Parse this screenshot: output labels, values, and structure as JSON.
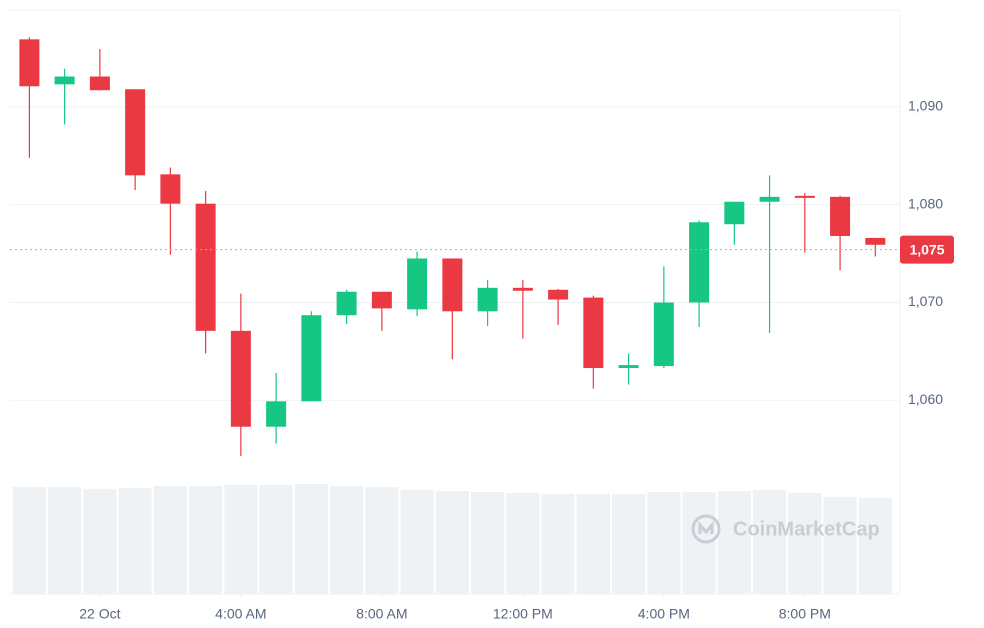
{
  "chart_data": {
    "type": "candlestick",
    "open": [
      1096.9,
      1092.3,
      1093.1,
      1091.8,
      1083.1,
      1080.1,
      1067.1,
      1057.3,
      1059.9,
      1068.7,
      1071.1,
      1069.3,
      1074.5,
      1069.1,
      1071.5,
      1071.3,
      1070.5,
      1063.3,
      1063.5,
      1070.0,
      1078.0,
      1080.3,
      1080.9,
      1080.8,
      1076.6
    ],
    "high": [
      1097.1,
      1093.9,
      1095.9,
      1091.8,
      1083.8,
      1081.4,
      1070.9,
      1062.8,
      1069.1,
      1071.3,
      1071.1,
      1075.2,
      1074.5,
      1072.3,
      1072.3,
      1071.4,
      1070.7,
      1064.8,
      1073.7,
      1078.4,
      1080.3,
      1083.0,
      1081.2,
      1080.9,
      1076.6
    ],
    "low": [
      1084.8,
      1088.2,
      1091.7,
      1081.5,
      1074.9,
      1064.8,
      1054.3,
      1055.6,
      1059.9,
      1067.8,
      1067.1,
      1068.6,
      1064.2,
      1067.6,
      1066.3,
      1067.7,
      1061.2,
      1061.6,
      1063.3,
      1067.5,
      1075.9,
      1066.9,
      1075.1,
      1073.3,
      1074.7
    ],
    "close": [
      1092.1,
      1093.1,
      1091.7,
      1083.0,
      1080.1,
      1067.1,
      1057.3,
      1059.9,
      1068.7,
      1071.1,
      1069.4,
      1074.5,
      1069.1,
      1071.5,
      1071.2,
      1070.3,
      1063.3,
      1063.6,
      1070.0,
      1078.2,
      1080.3,
      1080.8,
      1080.7,
      1076.8,
      1075.9
    ],
    "volumes": [
      107,
      107,
      105,
      106,
      108,
      108,
      109,
      109,
      110,
      108,
      107,
      104,
      103,
      102,
      101,
      100,
      100,
      100,
      102,
      102,
      103,
      104,
      101,
      97,
      96
    ],
    "volume_lim": [
      0,
      120
    ],
    "up_color": "#16c784",
    "down_color": "#ea3943",
    "volume_color": "#eff2f5",
    "ylim": [
      1040.2,
      1099.9
    ],
    "yticks": [
      {
        "value": 1060,
        "label": "1,060"
      },
      {
        "value": 1070,
        "label": "1,070"
      },
      {
        "value": 1080,
        "label": "1,080"
      },
      {
        "value": 1090,
        "label": "1,090"
      }
    ],
    "xlim": [
      -0.55,
      24.7
    ],
    "xticks": [
      {
        "value": 2,
        "label": "22 Oct"
      },
      {
        "value": 6,
        "label": "4:00 AM"
      },
      {
        "value": 10,
        "label": "8:00 AM"
      },
      {
        "value": 14,
        "label": "12:00 PM"
      },
      {
        "value": 18,
        "label": "4:00 PM"
      },
      {
        "value": 22,
        "label": "8:00 PM"
      }
    ],
    "current_price": {
      "value": 1075.4,
      "label": "1,075"
    },
    "watermark": "CoinMarketCap",
    "grid": true
  }
}
